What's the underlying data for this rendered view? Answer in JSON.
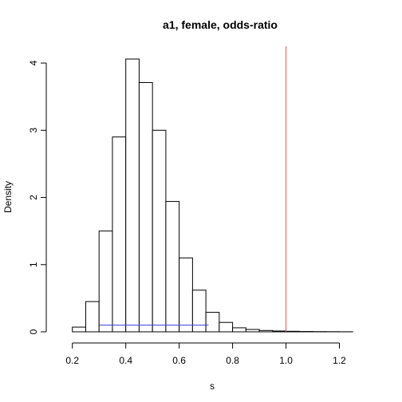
{
  "chart_data": {
    "type": "bar",
    "subtype": "histogram",
    "title": "a1, female, odds-ratio",
    "xlabel": "s",
    "ylabel": "Density",
    "xlim": [
      0.15,
      1.3
    ],
    "ylim": [
      0,
      4.25
    ],
    "x_ticks": [
      0.2,
      0.4,
      0.6,
      0.8,
      1.0,
      1.2
    ],
    "x_tick_labels": [
      "0.2",
      "0.4",
      "0.6",
      "0.8",
      "1.0",
      "1.2"
    ],
    "y_ticks": [
      0,
      1,
      2,
      3,
      4
    ],
    "y_tick_labels": [
      "0",
      "1",
      "2",
      "3",
      "4"
    ],
    "bin_width": 0.05,
    "bins": [
      {
        "x0": 0.15,
        "density": 0.0
      },
      {
        "x0": 0.2,
        "density": 0.07
      },
      {
        "x0": 0.25,
        "density": 0.45
      },
      {
        "x0": 0.3,
        "density": 1.5
      },
      {
        "x0": 0.35,
        "density": 2.9
      },
      {
        "x0": 0.4,
        "density": 4.06
      },
      {
        "x0": 0.45,
        "density": 3.71
      },
      {
        "x0": 0.5,
        "density": 3.0
      },
      {
        "x0": 0.55,
        "density": 1.94
      },
      {
        "x0": 0.6,
        "density": 1.1
      },
      {
        "x0": 0.65,
        "density": 0.62
      },
      {
        "x0": 0.7,
        "density": 0.29
      },
      {
        "x0": 0.75,
        "density": 0.14
      },
      {
        "x0": 0.8,
        "density": 0.06
      },
      {
        "x0": 0.85,
        "density": 0.035
      },
      {
        "x0": 0.9,
        "density": 0.02
      },
      {
        "x0": 0.95,
        "density": 0.012
      },
      {
        "x0": 1.0,
        "density": 0.008
      },
      {
        "x0": 1.05,
        "density": 0.005
      },
      {
        "x0": 1.1,
        "density": 0.003
      },
      {
        "x0": 1.15,
        "density": 0.002
      },
      {
        "x0": 1.2,
        "density": 0.001
      },
      {
        "x0": 1.25,
        "density": 0.0
      }
    ],
    "reference_line": {
      "x": 1.0,
      "color": "#e8504a"
    },
    "interval_line": {
      "x0": 0.3,
      "x1": 0.71,
      "y": 0.1,
      "color": "#3b3bd4"
    }
  }
}
